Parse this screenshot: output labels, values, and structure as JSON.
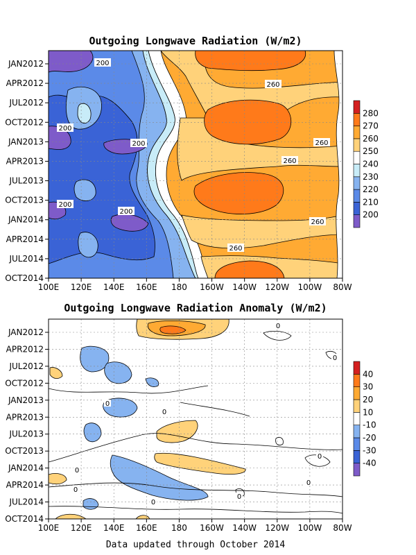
{
  "footer": "Data updated through October 2014",
  "chart_data": [
    {
      "type": "heatmap",
      "title": "Outgoing Longwave Radiation (W/m2)",
      "xlabel": "",
      "ylabel": "",
      "x_ticks": [
        "100E",
        "120E",
        "140E",
        "160E",
        "180",
        "160W",
        "140W",
        "120W",
        "100W",
        "80W"
      ],
      "y_ticks": [
        "JAN2012",
        "APR2012",
        "JUL2012",
        "OCT2012",
        "JAN2013",
        "APR2013",
        "JUL2013",
        "OCT2013",
        "JAN2014",
        "APR2014",
        "JUL2014",
        "OCT2014"
      ],
      "colorbar": {
        "levels": [
          "200",
          "210",
          "220",
          "230",
          "240",
          "250",
          "260",
          "270",
          "280"
        ],
        "colors": [
          "#7e5bc9",
          "#3a63d6",
          "#5b8ae8",
          "#86b3f0",
          "#c8ecf8",
          "#ffffff",
          "#ffd27a",
          "#ffaa33",
          "#ff7a1a",
          "#d42020"
        ]
      },
      "columns": [
        [
          205,
          200,
          220,
          215,
          208,
          215,
          212,
          208,
          205,
          218,
          222,
          230
        ],
        [
          210,
          215,
          230,
          225,
          210,
          212,
          218,
          214,
          212,
          222,
          226,
          232
        ],
        [
          205,
          212,
          232,
          228,
          214,
          210,
          222,
          220,
          214,
          228,
          230,
          236
        ],
        [
          202,
          214,
          226,
          222,
          205,
          212,
          216,
          210,
          206,
          222,
          228,
          236
        ],
        [
          215,
          222,
          230,
          228,
          218,
          222,
          226,
          220,
          222,
          232,
          238,
          246
        ],
        [
          230,
          236,
          242,
          236,
          234,
          232,
          238,
          234,
          236,
          242,
          246,
          252
        ],
        [
          248,
          255,
          252,
          250,
          248,
          246,
          248,
          248,
          252,
          256,
          258,
          260
        ],
        [
          262,
          262,
          262,
          262,
          262,
          260,
          260,
          262,
          262,
          262,
          264,
          266
        ],
        [
          266,
          264,
          266,
          266,
          264,
          262,
          266,
          266,
          264,
          263,
          266,
          272
        ],
        [
          268,
          264,
          272,
          274,
          266,
          263,
          272,
          274,
          266,
          262,
          266,
          273
        ],
        [
          266,
          262,
          272,
          273,
          264,
          262,
          272,
          272,
          264,
          260,
          264,
          270
        ],
        [
          266,
          260,
          266,
          266,
          260,
          258,
          264,
          266,
          262,
          258,
          262,
          266
        ],
        [
          262,
          256,
          260,
          258,
          258,
          256,
          258,
          258,
          258,
          256,
          258,
          262
        ]
      ],
      "contour_labels": [
        "200",
        "200",
        "200",
        "200",
        "200",
        "260",
        "260",
        "260",
        "260",
        "260",
        "260"
      ]
    },
    {
      "type": "heatmap",
      "title": "Outgoing Longwave Radiation Anomaly (W/m2)",
      "xlabel": "",
      "ylabel": "",
      "x_ticks": [
        "100E",
        "120E",
        "140E",
        "160E",
        "180",
        "160W",
        "140W",
        "120W",
        "100W",
        "80W"
      ],
      "y_ticks": [
        "JAN2012",
        "APR2012",
        "JUL2012",
        "OCT2012",
        "JAN2013",
        "APR2013",
        "JUL2013",
        "OCT2013",
        "JAN2014",
        "APR2014",
        "JUL2014",
        "OCT2014"
      ],
      "colorbar": {
        "levels": [
          "-40",
          "-30",
          "-20",
          "-10",
          "10",
          "20",
          "30",
          "40"
        ],
        "colors": [
          "#7e5bc9",
          "#3a63d6",
          "#5b8ae8",
          "#86b3f0",
          "#ffffff",
          "#ffd27a",
          "#ffaa33",
          "#ff7a1a",
          "#d42020"
        ]
      },
      "anomaly_regions": [
        {
          "sign": "positive",
          "level": "30",
          "x_from": "160E",
          "x_to": "160W",
          "y_from": "JAN2012",
          "y_to": "JAN2012"
        },
        {
          "sign": "positive",
          "level": "10",
          "x_from": "160E",
          "x_to": "160W",
          "y_from": "JAN2012",
          "y_to": "APR2012"
        },
        {
          "sign": "negative",
          "level": "-10",
          "x_from": "120E",
          "x_to": "140E",
          "y_from": "APR2012",
          "y_to": "OCT2012"
        },
        {
          "sign": "negative",
          "level": "-10",
          "x_from": "140E",
          "x_to": "160E",
          "y_from": "JUL2012",
          "y_to": "OCT2012"
        },
        {
          "sign": "negative",
          "level": "-10",
          "x_from": "140E",
          "x_to": "160E",
          "y_from": "JAN2013",
          "y_to": "APR2013"
        },
        {
          "sign": "positive",
          "level": "10",
          "x_from": "160E",
          "x_to": "160W",
          "y_from": "JUL2013",
          "y_to": "JUL2013"
        },
        {
          "sign": "positive",
          "level": "10",
          "x_from": "160E",
          "x_to": "140W",
          "y_from": "OCT2013",
          "y_to": "JAN2014"
        },
        {
          "sign": "negative",
          "level": "-10",
          "x_from": "140E",
          "x_to": "160W",
          "y_from": "OCT2013",
          "y_to": "APR2014"
        },
        {
          "sign": "positive",
          "level": "10",
          "x_from": "100E",
          "x_to": "100E",
          "y_from": "JAN2014",
          "y_to": "APR2014"
        },
        {
          "sign": "positive",
          "level": "10",
          "x_from": "100E",
          "x_to": "120E",
          "y_from": "OCT2014",
          "y_to": "OCT2014"
        },
        {
          "sign": "positive",
          "level": "10",
          "x_from": "160E",
          "x_to": "160E",
          "y_from": "OCT2014",
          "y_to": "OCT2014"
        }
      ],
      "contour_labels": [
        "0",
        "0",
        "0",
        "0",
        "0",
        "0",
        "0",
        "0",
        "0",
        "0"
      ]
    }
  ]
}
